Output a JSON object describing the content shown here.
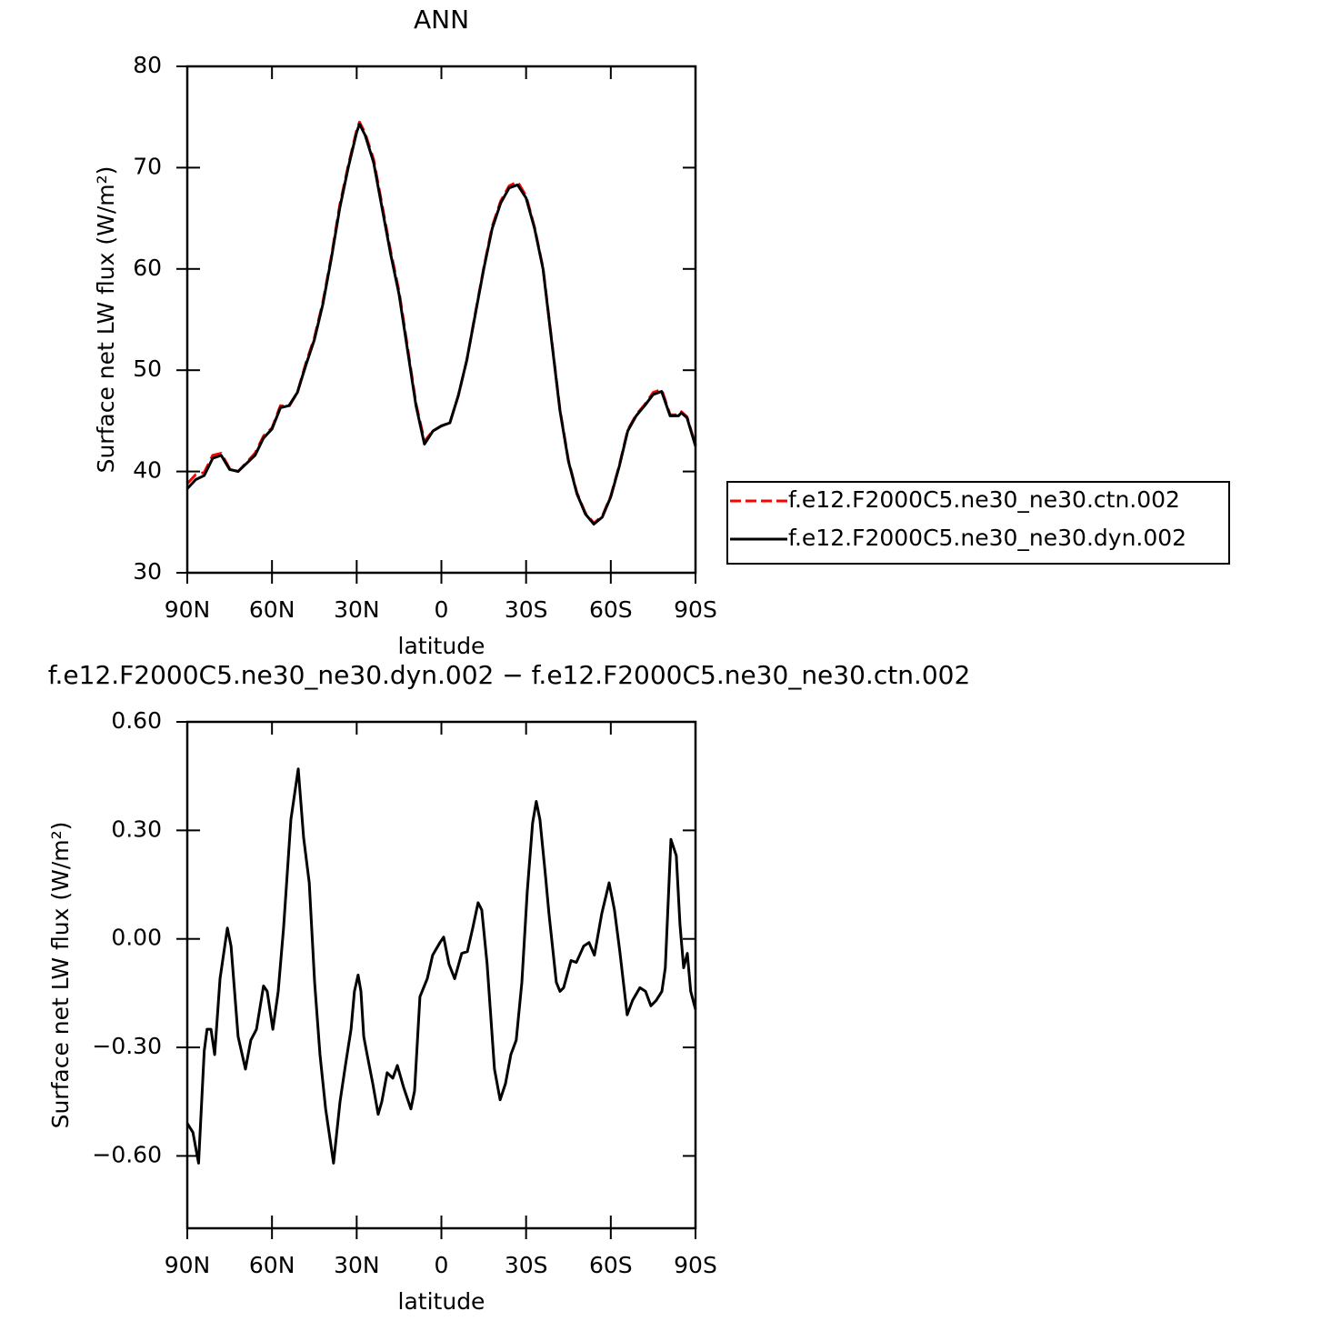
{
  "chart_data": [
    {
      "type": "line",
      "title": "ANN",
      "xlabel": "latitude",
      "ylabel": "Surface net LW flux (W/m²)",
      "x": [
        90,
        87,
        84,
        81,
        78,
        75,
        72,
        69,
        66,
        63,
        60,
        57,
        54,
        51,
        48,
        45,
        42,
        39,
        36,
        33,
        30,
        29,
        27,
        24,
        21,
        18,
        15,
        12,
        9,
        6,
        3,
        0,
        -3,
        -6,
        -9,
        -12,
        -15,
        -18,
        -21,
        -24,
        -27,
        -30,
        -33,
        -36,
        -39,
        -42,
        -45,
        -48,
        -51,
        -54,
        -57,
        -60,
        -63,
        -66,
        -69,
        -72,
        -75,
        -78,
        -81,
        -84,
        -85,
        -87,
        -90
      ],
      "series": [
        {
          "name": "f.e12.F2000C5.ne30_ne30.ctn.002",
          "color": "#ff0000",
          "dash": true,
          "values": [
            38.8,
            39.7,
            39.9,
            41.6,
            41.8,
            40.3,
            40.0,
            40.9,
            41.8,
            43.5,
            44.3,
            46.5,
            46.4,
            47.8,
            50.7,
            53.2,
            56.7,
            61.2,
            66.3,
            70.2,
            73.7,
            74.5,
            73.4,
            70.8,
            66.3,
            61.8,
            57.8,
            52.3,
            46.7,
            43.0,
            44.0,
            44.5,
            44.8,
            47.5,
            51.0,
            55.6,
            60.1,
            64.2,
            66.7,
            68.2,
            68.6,
            67.2,
            64.1,
            60.1,
            53.1,
            46.1,
            41.1,
            37.9,
            35.9,
            34.9,
            35.6,
            37.6,
            40.6,
            44.1,
            45.6,
            46.6,
            47.8,
            48.1,
            45.6,
            45.6,
            45.9,
            45.4,
            42.6
          ]
        },
        {
          "name": "f.e12.F2000C5.ne30_ne30.dyn.002",
          "color": "#000000",
          "dash": false,
          "values": [
            38.3,
            39.2,
            39.6,
            41.3,
            41.6,
            40.2,
            40.0,
            40.8,
            41.6,
            43.3,
            44.2,
            46.3,
            46.5,
            47.8,
            50.5,
            53.0,
            56.5,
            61.0,
            66.0,
            70.0,
            73.5,
            74.3,
            73.2,
            70.5,
            66.0,
            61.5,
            57.5,
            52.0,
            46.5,
            42.7,
            44.0,
            44.5,
            44.8,
            47.5,
            51.0,
            55.5,
            60.0,
            64.0,
            66.5,
            68.0,
            68.3,
            67.0,
            64.0,
            60.0,
            53.0,
            46.0,
            41.0,
            37.8,
            35.8,
            34.8,
            35.5,
            37.5,
            40.5,
            44.0,
            45.5,
            46.5,
            47.6,
            47.9,
            45.5,
            45.5,
            45.8,
            45.3,
            42.5
          ]
        }
      ],
      "xlim": [
        90,
        -90
      ],
      "xticks": [
        {
          "value": 90,
          "label": "90N"
        },
        {
          "value": 60,
          "label": "60N"
        },
        {
          "value": 30,
          "label": "30N"
        },
        0,
        {
          "value": -30,
          "label": "30S"
        },
        {
          "value": -60,
          "label": "60S"
        },
        {
          "value": -90,
          "label": "90S"
        }
      ],
      "ylim": [
        30,
        80
      ],
      "yticks": [
        30,
        40,
        50,
        60,
        70,
        80
      ],
      "legend": "right"
    },
    {
      "type": "line",
      "title": "f.e12.F2000C5.ne30_ne30.dyn.002 − f.e12.F2000C5.ne30_ne30.ctn.002",
      "xlabel": "latitude",
      "ylabel": "Surface net LW flux (W/m²)",
      "x": [
        90,
        88,
        86,
        84,
        83,
        81.6,
        80.3,
        78.4,
        75.8,
        74.5,
        72,
        69.4,
        67.5,
        65.5,
        63,
        61.7,
        59.7,
        57.8,
        55.9,
        53.3,
        50.7,
        48.8,
        46.8,
        44.9,
        43,
        41,
        38.2,
        35.9,
        34,
        32,
        30.8,
        29.5,
        28.5,
        27.5,
        26.3,
        24.3,
        22.4,
        21.1,
        19.2,
        17.2,
        15.6,
        13.4,
        10.8,
        9.5,
        7.6,
        5,
        3.1,
        0.5,
        -0.8,
        -2.7,
        -4.7,
        -7.2,
        -9.2,
        -11.1,
        -13,
        -14.3,
        -16.2,
        -18.8,
        -20.8,
        -22.7,
        -24.6,
        -26.5,
        -28.5,
        -30.4,
        -32.3,
        -33.6,
        -34.9,
        -36.8,
        -38.1,
        -40.7,
        -42,
        -43.3,
        -45.9,
        -47.8,
        -50.4,
        -52.3,
        -54.2,
        -56.8,
        -59.4,
        -61.3,
        -63.2,
        -65.8,
        -67.7,
        -70.3,
        -72.3,
        -74.2,
        -76.1,
        -78.1,
        -79.3,
        -81.3,
        -83.2,
        -84.5,
        -85.8,
        -87.1,
        -88.3,
        -90
      ],
      "series": [
        {
          "name": "f.e12.F2000C5.ne30_ne30.dyn.002 − f.e12.F2000C5.ne30_ne30.ctn.002",
          "color": "#000000",
          "dash": false,
          "values": [
            -0.51,
            -0.535,
            -0.62,
            -0.31,
            -0.25,
            -0.25,
            -0.32,
            -0.11,
            0.03,
            -0.02,
            -0.27,
            -0.36,
            -0.28,
            -0.25,
            -0.13,
            -0.145,
            -0.25,
            -0.145,
            0.03,
            0.33,
            0.47,
            0.28,
            0.155,
            -0.12,
            -0.32,
            -0.47,
            -0.62,
            -0.45,
            -0.35,
            -0.25,
            -0.145,
            -0.1,
            -0.145,
            -0.27,
            -0.32,
            -0.4,
            -0.485,
            -0.45,
            -0.37,
            -0.385,
            -0.35,
            -0.41,
            -0.47,
            -0.42,
            -0.16,
            -0.11,
            -0.045,
            -0.01,
            0.005,
            -0.07,
            -0.11,
            -0.04,
            -0.035,
            0.03,
            0.1,
            0.08,
            -0.07,
            -0.36,
            -0.445,
            -0.4,
            -0.32,
            -0.28,
            -0.12,
            0.13,
            0.32,
            0.38,
            0.33,
            0.18,
            0.07,
            -0.12,
            -0.145,
            -0.135,
            -0.06,
            -0.065,
            -0.02,
            -0.01,
            -0.045,
            0.07,
            0.155,
            0.08,
            -0.035,
            -0.21,
            -0.17,
            -0.135,
            -0.145,
            -0.185,
            -0.17,
            -0.145,
            -0.08,
            0.275,
            0.23,
            0.04,
            -0.08,
            -0.04,
            -0.145,
            -0.195
          ]
        }
      ],
      "xlim": [
        90,
        -90
      ],
      "xticks": [
        {
          "value": 90,
          "label": "90N"
        },
        {
          "value": 60,
          "label": "60N"
        },
        {
          "value": 30,
          "label": "30N"
        },
        0,
        {
          "value": -30,
          "label": "30S"
        },
        {
          "value": -60,
          "label": "60S"
        },
        {
          "value": -90,
          "label": "90S"
        }
      ],
      "ylim": [
        -0.8,
        0.6
      ],
      "yticks": [
        {
          "value": -0.6,
          "label": "−0.60"
        },
        {
          "value": -0.3,
          "label": "−0.30"
        },
        {
          "value": 0,
          "label": "0.00"
        },
        {
          "value": 0.3,
          "label": "0.30"
        },
        {
          "value": 0.6,
          "label": "0.60"
        }
      ]
    }
  ]
}
